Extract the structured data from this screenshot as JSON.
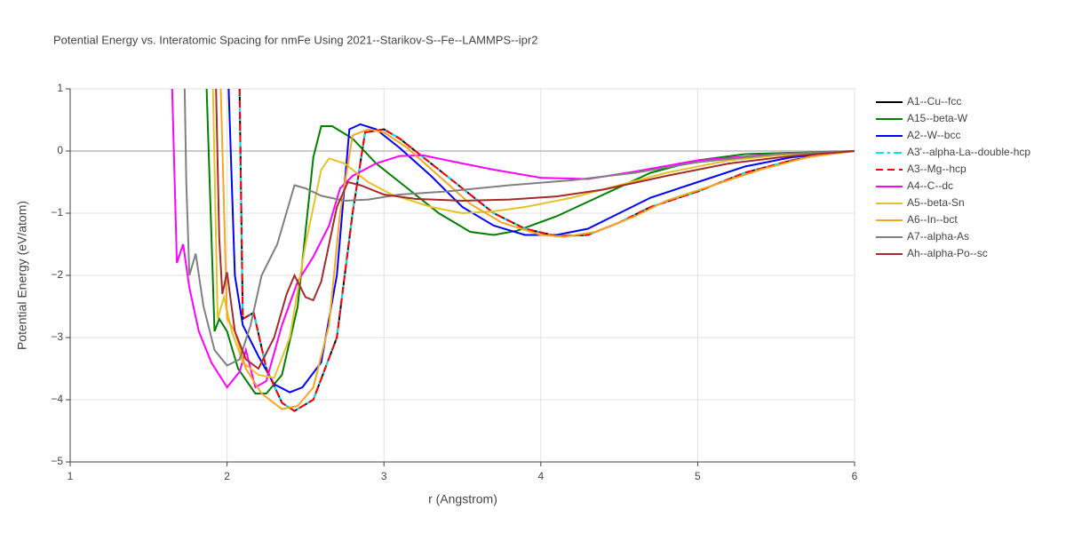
{
  "chart_data": {
    "type": "line",
    "title": "Potential Energy vs. Interatomic Spacing for nmFe Using 2021--Starikov-S--Fe--LAMMPS--ipr2",
    "x_label": "r (Angstrom)",
    "y_label": "Potential Energy (eV/atom)",
    "xlim": [
      1,
      6
    ],
    "ylim": [
      -5,
      1
    ],
    "xticks": [
      1,
      2,
      3,
      4,
      5,
      6
    ],
    "yticks": [
      {
        "value": -5,
        "label": "−5"
      },
      {
        "value": -4,
        "label": "−4"
      },
      {
        "value": -3,
        "label": "−3"
      },
      {
        "value": -2,
        "label": "−2"
      },
      {
        "value": -1,
        "label": "−1"
      },
      0,
      1
    ],
    "grid": true,
    "legend": "right",
    "series": [
      {
        "name": "A1--Cu--fcc",
        "color": "#000000",
        "dash": "solid",
        "x": [
          2.08,
          2.1,
          2.17,
          2.25,
          2.35,
          2.43,
          2.55,
          2.7,
          2.8,
          2.88,
          3.0,
          3.1,
          3.3,
          3.5,
          3.7,
          3.9,
          4.1,
          4.3,
          4.5,
          4.7,
          5.0,
          5.3,
          5.6,
          5.8,
          6.0
        ],
        "values": [
          1,
          -2.7,
          -2.6,
          -3.5,
          -4.05,
          -4.18,
          -4.0,
          -3.0,
          -1.0,
          0.3,
          0.35,
          0.2,
          -0.2,
          -0.6,
          -1.0,
          -1.25,
          -1.37,
          -1.35,
          -1.15,
          -0.9,
          -0.65,
          -0.35,
          -0.15,
          -0.05,
          0
        ]
      },
      {
        "name": "A15--beta-W",
        "color": "#008000",
        "dash": "solid",
        "x": [
          1.87,
          1.92,
          1.95,
          2.0,
          2.07,
          2.18,
          2.25,
          2.35,
          2.45,
          2.55,
          2.6,
          2.67,
          2.8,
          2.95,
          3.15,
          3.35,
          3.55,
          3.7,
          3.85,
          4.1,
          4.4,
          4.7,
          5.0,
          5.3,
          6.0
        ],
        "values": [
          1,
          -2.9,
          -2.7,
          -2.9,
          -3.5,
          -3.9,
          -3.9,
          -3.6,
          -2.5,
          -0.1,
          0.4,
          0.4,
          0.2,
          -0.2,
          -0.6,
          -1.0,
          -1.3,
          -1.35,
          -1.28,
          -1.05,
          -0.7,
          -0.35,
          -0.15,
          -0.05,
          0
        ]
      },
      {
        "name": "A2--W--bcc",
        "color": "#0000ff",
        "dash": "solid",
        "x": [
          2.01,
          2.05,
          2.1,
          2.2,
          2.3,
          2.4,
          2.48,
          2.6,
          2.7,
          2.78,
          2.85,
          2.95,
          3.1,
          3.3,
          3.5,
          3.7,
          3.9,
          4.1,
          4.3,
          4.5,
          4.7,
          5.0,
          5.3,
          5.6,
          6.0
        ],
        "values": [
          1,
          -2.0,
          -2.8,
          -3.3,
          -3.75,
          -3.88,
          -3.8,
          -3.4,
          -2.0,
          0.35,
          0.43,
          0.35,
          0.05,
          -0.4,
          -0.9,
          -1.2,
          -1.35,
          -1.35,
          -1.25,
          -1.0,
          -0.75,
          -0.5,
          -0.25,
          -0.1,
          0
        ]
      },
      {
        "name": "A3'--alpha-La--double-hcp",
        "color": "#00e5ff",
        "dash": "dashdot",
        "x": [
          2.08,
          2.1,
          2.17,
          2.25,
          2.35,
          2.43,
          2.55,
          2.7,
          2.8,
          2.88,
          3.0,
          3.1,
          3.3,
          3.5,
          3.7,
          3.9,
          4.1,
          4.3,
          4.5,
          4.7,
          5.0,
          5.3,
          5.6,
          5.8,
          6.0
        ],
        "values": [
          1,
          -2.7,
          -2.6,
          -3.5,
          -4.05,
          -4.18,
          -4.0,
          -3.0,
          -1.0,
          0.3,
          0.35,
          0.2,
          -0.2,
          -0.6,
          -1.0,
          -1.25,
          -1.37,
          -1.35,
          -1.15,
          -0.9,
          -0.65,
          -0.35,
          -0.15,
          -0.05,
          0
        ]
      },
      {
        "name": "A3--Mg--hcp",
        "color": "#ff0000",
        "dash": "dash",
        "x": [
          2.08,
          2.1,
          2.17,
          2.25,
          2.35,
          2.43,
          2.55,
          2.7,
          2.8,
          2.88,
          3.0,
          3.1,
          3.3,
          3.5,
          3.7,
          3.9,
          4.1,
          4.3,
          4.5,
          4.7,
          5.0,
          5.3,
          5.6,
          5.8,
          6.0
        ],
        "values": [
          1,
          -2.7,
          -2.6,
          -3.5,
          -4.05,
          -4.18,
          -4.0,
          -3.0,
          -1.0,
          0.3,
          0.35,
          0.2,
          -0.2,
          -0.6,
          -1.0,
          -1.25,
          -1.37,
          -1.35,
          -1.15,
          -0.9,
          -0.65,
          -0.35,
          -0.15,
          -0.05,
          0
        ]
      },
      {
        "name": "A4--C--dc",
        "color": "#ff00ff",
        "dash": "solid",
        "x": [
          1.65,
          1.68,
          1.72,
          1.76,
          1.82,
          1.9,
          2.0,
          2.08,
          2.12,
          2.18,
          2.25,
          2.35,
          2.45,
          2.55,
          2.65,
          2.72,
          2.8,
          2.95,
          3.1,
          3.25,
          3.5,
          3.7,
          4.0,
          4.3,
          4.6,
          5.0,
          5.5,
          6.0
        ],
        "values": [
          1,
          -1.8,
          -1.5,
          -2.2,
          -2.9,
          -3.4,
          -3.8,
          -3.55,
          -3.2,
          -3.8,
          -3.7,
          -2.8,
          -2.1,
          -1.7,
          -1.2,
          -0.6,
          -0.4,
          -0.2,
          -0.08,
          -0.07,
          -0.2,
          -0.3,
          -0.43,
          -0.45,
          -0.33,
          -0.15,
          -0.05,
          0
        ]
      },
      {
        "name": "A5--beta-Sn",
        "color": "#e6c229",
        "dash": "solid",
        "x": [
          1.91,
          1.94,
          1.98,
          2.03,
          2.1,
          2.2,
          2.3,
          2.4,
          2.5,
          2.6,
          2.65,
          2.75,
          2.9,
          3.05,
          3.3,
          3.5,
          3.7,
          3.9,
          4.2,
          4.5,
          4.8,
          5.2,
          5.6,
          6.0
        ],
        "values": [
          1,
          -2.7,
          -2.35,
          -2.9,
          -3.4,
          -3.6,
          -3.65,
          -3.0,
          -1.5,
          -0.3,
          -0.12,
          -0.2,
          -0.5,
          -0.7,
          -0.9,
          -1.0,
          -0.97,
          -0.9,
          -0.75,
          -0.55,
          -0.35,
          -0.15,
          -0.05,
          0
        ]
      },
      {
        "name": "A6--In--bct",
        "color": "#f5a623",
        "dash": "solid",
        "x": [
          1.96,
          2.0,
          2.05,
          2.12,
          2.22,
          2.35,
          2.45,
          2.55,
          2.65,
          2.72,
          2.8,
          2.9,
          3.0,
          3.15,
          3.35,
          3.55,
          3.75,
          4.0,
          4.15,
          4.35,
          4.6,
          4.8,
          5.1,
          5.4,
          5.7,
          6.0
        ],
        "values": [
          1,
          -2.7,
          -2.9,
          -3.5,
          -3.9,
          -4.15,
          -4.1,
          -3.8,
          -2.8,
          -1.0,
          0.25,
          0.35,
          0.3,
          0.05,
          -0.4,
          -0.85,
          -1.15,
          -1.35,
          -1.38,
          -1.3,
          -1.05,
          -0.8,
          -0.55,
          -0.3,
          -0.1,
          0
        ]
      },
      {
        "name": "A7--alpha-As",
        "color": "#808080",
        "dash": "solid",
        "x": [
          1.73,
          1.74,
          1.76,
          1.8,
          1.85,
          1.92,
          2.0,
          2.08,
          2.15,
          2.22,
          2.32,
          2.43,
          2.5,
          2.6,
          2.75,
          2.9,
          3.1,
          3.4,
          3.8,
          4.2,
          4.6,
          5.0,
          5.5,
          6.0
        ],
        "values": [
          1,
          -0.5,
          -2.0,
          -1.65,
          -2.5,
          -3.2,
          -3.45,
          -3.35,
          -2.8,
          -2.0,
          -1.5,
          -0.55,
          -0.6,
          -0.72,
          -0.8,
          -0.78,
          -0.7,
          -0.65,
          -0.55,
          -0.47,
          -0.35,
          -0.18,
          -0.05,
          0
        ]
      },
      {
        "name": "Ah--alpha-Po--sc",
        "color": "#a52a2a",
        "dash": "solid",
        "x": [
          1.93,
          1.95,
          1.97,
          2.0,
          2.05,
          2.12,
          2.2,
          2.3,
          2.38,
          2.43,
          2.5,
          2.55,
          2.6,
          2.7,
          2.77,
          2.85,
          3.0,
          3.2,
          3.5,
          3.8,
          4.1,
          4.4,
          4.8,
          5.2,
          5.6,
          6.0
        ],
        "values": [
          1,
          -1.4,
          -2.3,
          -1.95,
          -2.9,
          -3.35,
          -3.5,
          -3.0,
          -2.3,
          -2.0,
          -2.35,
          -2.4,
          -2.1,
          -0.9,
          -0.5,
          -0.55,
          -0.7,
          -0.77,
          -0.8,
          -0.78,
          -0.73,
          -0.62,
          -0.4,
          -0.2,
          -0.08,
          0
        ]
      }
    ]
  }
}
